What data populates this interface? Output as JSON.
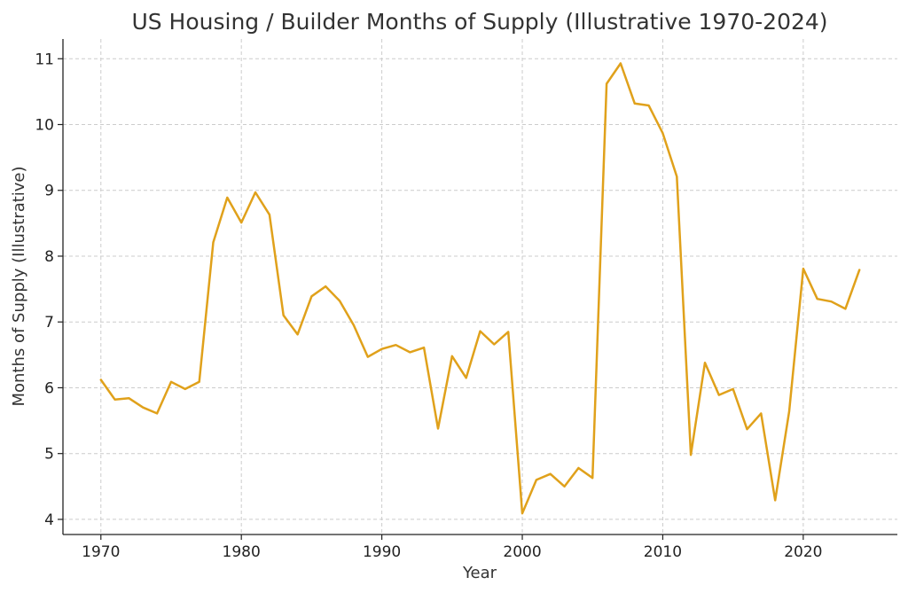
{
  "chart_data": {
    "type": "line",
    "title": "US Housing / Builder Months of Supply (Illustrative 1970-2024)",
    "xlabel": "Year",
    "ylabel": "Months of Supply (Illustrative)",
    "xlim": [
      1967.3,
      2026.7
    ],
    "ylim": [
      3.77,
      11.3
    ],
    "xticks": [
      1970,
      1980,
      1990,
      2000,
      2010,
      2020
    ],
    "yticks": [
      4,
      5,
      6,
      7,
      8,
      9,
      10,
      11
    ],
    "grid": true,
    "line_color": "#E0A11B",
    "x": [
      1970,
      1971,
      1972,
      1973,
      1974,
      1975,
      1976,
      1977,
      1978,
      1979,
      1980,
      1981,
      1982,
      1983,
      1984,
      1985,
      1986,
      1987,
      1988,
      1989,
      1990,
      1991,
      1992,
      1993,
      1994,
      1995,
      1996,
      1997,
      1998,
      1999,
      2000,
      2001,
      2002,
      2003,
      2004,
      2005,
      2006,
      2007,
      2008,
      2009,
      2010,
      2011,
      2012,
      2013,
      2014,
      2015,
      2016,
      2017,
      2018,
      2019,
      2020,
      2021,
      2022,
      2023,
      2024
    ],
    "values": [
      6.12,
      5.82,
      5.84,
      5.7,
      5.61,
      6.09,
      5.98,
      6.09,
      8.21,
      8.89,
      8.51,
      8.97,
      8.63,
      7.1,
      6.81,
      7.39,
      7.54,
      7.32,
      6.95,
      6.47,
      6.59,
      6.65,
      6.54,
      6.61,
      5.38,
      6.48,
      6.15,
      6.86,
      6.66,
      6.85,
      4.09,
      4.6,
      4.69,
      4.5,
      4.78,
      4.63,
      10.62,
      10.93,
      10.32,
      10.29,
      9.87,
      9.21,
      4.98,
      6.38,
      5.89,
      5.98,
      5.37,
      5.61,
      4.29,
      5.64,
      7.81,
      7.35,
      7.31,
      7.2,
      7.79
    ]
  }
}
